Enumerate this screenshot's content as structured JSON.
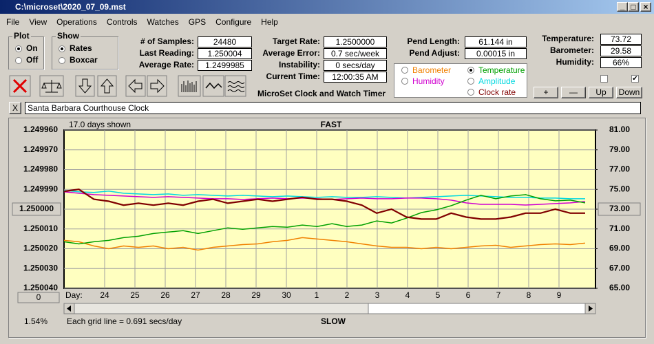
{
  "window": {
    "title": "C:\\microset\\2020_07_09.mst"
  },
  "menu": [
    "File",
    "View",
    "Operations",
    "Controls",
    "Watches",
    "GPS",
    "Configure",
    "Help"
  ],
  "plot_group": {
    "title": "Plot",
    "options": [
      "On",
      "Off"
    ],
    "selected": 0
  },
  "show_group": {
    "title": "Show",
    "options": [
      "Rates",
      "Boxcar"
    ],
    "selected": 0
  },
  "stats": [
    {
      "label": "# of Samples:",
      "value": "24480"
    },
    {
      "label": "Last Reading:",
      "value": "1.250004"
    },
    {
      "label": "Average Rate:",
      "value": "1.2499985"
    }
  ],
  "rates": [
    {
      "label": "Target Rate:",
      "value": "1.2500000"
    },
    {
      "label": "Average Error:",
      "value": "0.7 sec/week"
    },
    {
      "label": "Instability:",
      "value": "0 secs/day"
    },
    {
      "label": "Current Time:",
      "value": "12:00:35 AM"
    }
  ],
  "pendulum": [
    {
      "label": "Pend Length:",
      "value": "61.144 in"
    },
    {
      "label": "Pend Adjust:",
      "value": "0.00015 in"
    }
  ],
  "environment": [
    {
      "label": "Temperature:",
      "value": "73.72"
    },
    {
      "label": "Barometer:",
      "value": "29.58"
    },
    {
      "label": "Humidity:",
      "value": "66%"
    }
  ],
  "checkboxes": [
    false,
    true
  ],
  "legend": {
    "options": [
      {
        "label": "Barometer",
        "color": "#f08000"
      },
      {
        "label": "Temperature",
        "color": "#00a000"
      },
      {
        "label": "Humidity",
        "color": "#d000d0"
      },
      {
        "label": "Amplitude",
        "color": "#00d8e0"
      },
      {
        "label": "Clock rate",
        "color": "#800000"
      }
    ],
    "selected": 1
  },
  "adjust_buttons": [
    "+",
    "—",
    "Up",
    "Down"
  ],
  "app_label": "MicroSet Clock and Watch Timer",
  "clock_name": "Santa Barbara Courthouse Clock",
  "close_button": "X",
  "chart": {
    "type": "line",
    "header_left": "17.0 days shown",
    "top_label": "FAST",
    "bottom_label": "SLOW",
    "footer": "Each grid line = 0.691 secs/day",
    "footer_left": "1.54%",
    "zero_button": "0",
    "x_label": "Day:",
    "categories": [
      "24",
      "25",
      "26",
      "27",
      "28",
      "29",
      "30",
      "1",
      "2",
      "3",
      "4",
      "5",
      "6",
      "7",
      "8",
      "9"
    ],
    "grid": true,
    "y_inverted": true,
    "ylim": [
      1.24996,
      1.25004
    ],
    "yticks": [
      {
        "value": 1.24996,
        "label": "1.249960"
      },
      {
        "value": 1.24997,
        "label": "1.249970"
      },
      {
        "value": 1.24998,
        "label": "1.249980"
      },
      {
        "value": 1.24999,
        "label": "1.249990"
      },
      {
        "value": 1.25,
        "label": "1.250000"
      },
      {
        "value": 1.25001,
        "label": "1.250010"
      },
      {
        "value": 1.25002,
        "label": "1.250020"
      },
      {
        "value": 1.25003,
        "label": "1.250030"
      },
      {
        "value": 1.25004,
        "label": "1.250040"
      }
    ],
    "y2lim": [
      65,
      81
    ],
    "y2ticks": [
      {
        "value": 81,
        "label": "81.00"
      },
      {
        "value": 79,
        "label": "79.00"
      },
      {
        "value": 77,
        "label": "77.00"
      },
      {
        "value": 75,
        "label": "75.00"
      },
      {
        "value": 73,
        "label": "73.00"
      },
      {
        "value": 71,
        "label": "71.00"
      },
      {
        "value": 69,
        "label": "69.00"
      },
      {
        "value": 67,
        "label": "67.00"
      },
      {
        "value": 65,
        "label": "65.00"
      }
    ],
    "series": [
      {
        "name": "Barometer",
        "color": "#f08000",
        "axis": "y2",
        "values": [
          69.84,
          69.7,
          69.28,
          69.0,
          69.28,
          69.14,
          69.28,
          69.0,
          69.14,
          68.86,
          69.14,
          69.28,
          69.42,
          69.49,
          69.7,
          69.84,
          70.12,
          69.98,
          69.84,
          69.7,
          69.49,
          69.28,
          69.14,
          69.14,
          69.0,
          69.14,
          69.0,
          69.14,
          69.28,
          69.35,
          69.14,
          69.28,
          69.42,
          69.49,
          69.42,
          69.56
        ]
      },
      {
        "name": "Amplitude",
        "color": "#00d8e0",
        "axis": "y2",
        "values": [
          74.89,
          74.75,
          74.68,
          74.82,
          74.61,
          74.54,
          74.47,
          74.54,
          74.4,
          74.47,
          74.4,
          74.33,
          74.4,
          74.33,
          74.26,
          74.33,
          74.26,
          74.19,
          74.26,
          74.19,
          74.19,
          74.26,
          74.19,
          74.12,
          74.19,
          74.26,
          74.33,
          74.4,
          74.33,
          74.26,
          74.19,
          74.19,
          74.12,
          74.12,
          74.05,
          74.05
        ]
      },
      {
        "name": "Humidity",
        "color": "#d000d0",
        "axis": "y2",
        "values": [
          74.75,
          74.61,
          74.47,
          74.4,
          74.33,
          74.26,
          74.19,
          74.26,
          74.19,
          74.12,
          74.05,
          74.05,
          73.98,
          74.05,
          74.12,
          74.05,
          74.12,
          74.05,
          73.98,
          74.05,
          74.12,
          74.05,
          74.05,
          74.12,
          74.12,
          74.05,
          73.91,
          73.63,
          73.49,
          73.49,
          73.49,
          73.42,
          73.49,
          73.56,
          73.63,
          73.77
        ]
      },
      {
        "name": "Temperature",
        "color": "#00a000",
        "axis": "y2",
        "values": [
          69.7,
          69.49,
          69.7,
          69.84,
          70.12,
          70.26,
          70.54,
          70.68,
          70.82,
          70.54,
          70.82,
          71.11,
          70.96,
          71.11,
          71.25,
          71.18,
          71.39,
          71.25,
          71.53,
          71.25,
          71.39,
          71.81,
          71.6,
          72.09,
          72.65,
          72.93,
          73.35,
          73.91,
          74.4,
          74.05,
          74.33,
          74.47,
          74.05,
          73.84,
          73.91,
          73.63
        ]
      },
      {
        "name": "Clock rate",
        "color": "#800000",
        "axis": "y",
        "values": [
          1.249991,
          1.24999,
          1.249995,
          1.249996,
          1.249998,
          1.249997,
          1.249998,
          1.249997,
          1.249998,
          1.249996,
          1.249995,
          1.249997,
          1.249996,
          1.249995,
          1.249996,
          1.249995,
          1.249994,
          1.249995,
          1.249995,
          1.249996,
          1.249998,
          1.250002,
          1.25,
          1.250004,
          1.250005,
          1.250005,
          1.250002,
          1.250004,
          1.250005,
          1.250005,
          1.250004,
          1.250002,
          1.250002,
          1.25,
          1.250002,
          1.250002
        ]
      }
    ]
  }
}
